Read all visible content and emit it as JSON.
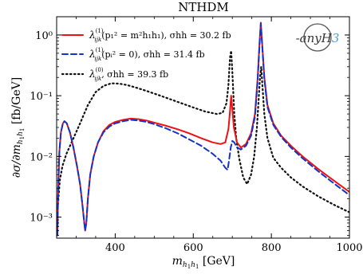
{
  "chart_data": {
    "type": "line",
    "title": "NTHDM",
    "xlabel": "m_{h1h1} [GeV]",
    "ylabel": "∂σ/∂m_{h1h1} [fb/GeV]",
    "x_scale": "linear",
    "y_scale": "log",
    "xlim": [
      250,
      1000
    ],
    "ylim": [
      0.00045,
      2.0
    ],
    "x_ticks": [
      400,
      600,
      800,
      1000
    ],
    "x_tick_labels": [
      "400",
      "600",
      "800",
      "1000"
    ],
    "y_ticks": [
      0.001,
      0.01,
      0.1,
      1
    ],
    "y_tick_labels": [
      "10⁻³",
      "10⁻²",
      "10⁻¹",
      "10⁰"
    ],
    "grid": false,
    "legend_position": "top-left",
    "logo_text": "anyH3",
    "series": [
      {
        "name": "λ(1)ijk(p₁² = m²h1h1), σhh = 30.2 fb",
        "color": "#ee1111",
        "style": "solid",
        "points": [
          [
            252,
            0.0005
          ],
          [
            254,
            0.003
          ],
          [
            257,
            0.012
          ],
          [
            261,
            0.025
          ],
          [
            266,
            0.035
          ],
          [
            270,
            0.038
          ],
          [
            276,
            0.035
          ],
          [
            284,
            0.025
          ],
          [
            293,
            0.014
          ],
          [
            302,
            0.007
          ],
          [
            310,
            0.0035
          ],
          [
            316,
            0.0016
          ],
          [
            320,
            0.0009
          ],
          [
            323,
            0.0006
          ],
          [
            326,
            0.0008
          ],
          [
            330,
            0.002
          ],
          [
            336,
            0.005
          ],
          [
            345,
            0.01
          ],
          [
            356,
            0.017
          ],
          [
            370,
            0.026
          ],
          [
            385,
            0.033
          ],
          [
            400,
            0.037
          ],
          [
            420,
            0.04
          ],
          [
            440,
            0.042
          ],
          [
            460,
            0.041
          ],
          [
            480,
            0.039
          ],
          [
            500,
            0.036
          ],
          [
            530,
            0.032
          ],
          [
            560,
            0.028
          ],
          [
            590,
            0.024
          ],
          [
            620,
            0.02
          ],
          [
            650,
            0.017
          ],
          [
            670,
            0.016
          ],
          [
            682,
            0.017
          ],
          [
            690,
            0.028
          ],
          [
            694,
            0.055
          ],
          [
            697,
            0.1
          ],
          [
            700,
            0.06
          ],
          [
            704,
            0.03
          ],
          [
            712,
            0.017
          ],
          [
            722,
            0.014
          ],
          [
            735,
            0.016
          ],
          [
            748,
            0.024
          ],
          [
            758,
            0.05
          ],
          [
            765,
            0.2
          ],
          [
            770,
            0.8
          ],
          [
            773,
            1.6
          ],
          [
            776,
            0.8
          ],
          [
            782,
            0.2
          ],
          [
            790,
            0.07
          ],
          [
            805,
            0.035
          ],
          [
            825,
            0.022
          ],
          [
            850,
            0.015
          ],
          [
            880,
            0.01
          ],
          [
            920,
            0.0062
          ],
          [
            960,
            0.004
          ],
          [
            1000,
            0.0026
          ]
        ]
      },
      {
        "name": "λ(1)ijk(pᵢ² = 0), σhh = 31.4 fb",
        "color": "#1133cc",
        "style": "dashed",
        "points": [
          [
            252,
            0.0005
          ],
          [
            254,
            0.003
          ],
          [
            257,
            0.012
          ],
          [
            261,
            0.025
          ],
          [
            266,
            0.035
          ],
          [
            270,
            0.038
          ],
          [
            276,
            0.035
          ],
          [
            284,
            0.025
          ],
          [
            293,
            0.014
          ],
          [
            302,
            0.007
          ],
          [
            310,
            0.0035
          ],
          [
            316,
            0.0016
          ],
          [
            320,
            0.0009
          ],
          [
            323,
            0.0006
          ],
          [
            326,
            0.0008
          ],
          [
            330,
            0.002
          ],
          [
            336,
            0.005
          ],
          [
            345,
            0.01
          ],
          [
            356,
            0.017
          ],
          [
            370,
            0.025
          ],
          [
            385,
            0.031
          ],
          [
            400,
            0.035
          ],
          [
            420,
            0.038
          ],
          [
            440,
            0.04
          ],
          [
            460,
            0.039
          ],
          [
            480,
            0.037
          ],
          [
            500,
            0.034
          ],
          [
            530,
            0.029
          ],
          [
            560,
            0.024
          ],
          [
            590,
            0.019
          ],
          [
            620,
            0.015
          ],
          [
            650,
            0.011
          ],
          [
            670,
            0.0085
          ],
          [
            682,
            0.0065
          ],
          [
            688,
            0.006
          ],
          [
            692,
            0.009
          ],
          [
            696,
            0.014
          ],
          [
            700,
            0.018
          ],
          [
            705,
            0.017
          ],
          [
            712,
            0.014
          ],
          [
            722,
            0.013
          ],
          [
            735,
            0.015
          ],
          [
            748,
            0.022
          ],
          [
            758,
            0.045
          ],
          [
            765,
            0.18
          ],
          [
            770,
            0.75
          ],
          [
            773,
            1.55
          ],
          [
            776,
            0.75
          ],
          [
            782,
            0.19
          ],
          [
            790,
            0.065
          ],
          [
            805,
            0.033
          ],
          [
            825,
            0.021
          ],
          [
            850,
            0.014
          ],
          [
            880,
            0.0093
          ],
          [
            920,
            0.0057
          ],
          [
            960,
            0.0036
          ],
          [
            1000,
            0.0023
          ]
        ]
      },
      {
        "name": "λ(0)ijk, σhh = 39.3 fb",
        "color": "#111111",
        "style": "dotted",
        "points": [
          [
            252,
            0.0012
          ],
          [
            258,
            0.004
          ],
          [
            265,
            0.007
          ],
          [
            275,
            0.011
          ],
          [
            290,
            0.018
          ],
          [
            310,
            0.035
          ],
          [
            330,
            0.07
          ],
          [
            350,
            0.115
          ],
          [
            370,
            0.145
          ],
          [
            390,
            0.16
          ],
          [
            410,
            0.158
          ],
          [
            430,
            0.15
          ],
          [
            450,
            0.138
          ],
          [
            480,
            0.12
          ],
          [
            510,
            0.103
          ],
          [
            540,
            0.088
          ],
          [
            570,
            0.075
          ],
          [
            600,
            0.064
          ],
          [
            630,
            0.055
          ],
          [
            660,
            0.05
          ],
          [
            675,
            0.052
          ],
          [
            685,
            0.075
          ],
          [
            690,
            0.15
          ],
          [
            694,
            0.42
          ],
          [
            697,
            0.55
          ],
          [
            700,
            0.25
          ],
          [
            705,
            0.05
          ],
          [
            710,
            0.02
          ],
          [
            718,
            0.009
          ],
          [
            728,
            0.0045
          ],
          [
            738,
            0.0035
          ],
          [
            748,
            0.005
          ],
          [
            756,
            0.01
          ],
          [
            763,
            0.03
          ],
          [
            768,
            0.1
          ],
          [
            771,
            0.2
          ],
          [
            774,
            0.3
          ],
          [
            777,
            0.15
          ],
          [
            782,
            0.05
          ],
          [
            790,
            0.02
          ],
          [
            805,
            0.0095
          ],
          [
            825,
            0.0065
          ],
          [
            850,
            0.0045
          ],
          [
            880,
            0.0032
          ],
          [
            920,
            0.0022
          ],
          [
            960,
            0.0016
          ],
          [
            1000,
            0.0012
          ]
        ]
      }
    ],
    "legend": [
      {
        "label_main": "λ",
        "label_sup": "(1)",
        "label_sub": "ijk",
        "label_rest": "(p₁² = m²h₁h₁),  σhh = 30.2 fb"
      },
      {
        "label_main": "λ",
        "label_sup": "(1)",
        "label_sub": "ijk",
        "label_rest": "(pᵢ² = 0),  σhh = 31.4 fb"
      },
      {
        "label_main": "λ",
        "label_sup": "(0)",
        "label_sub": "ijk",
        "label_rest": ",  σhh = 39.3 fb"
      }
    ]
  }
}
